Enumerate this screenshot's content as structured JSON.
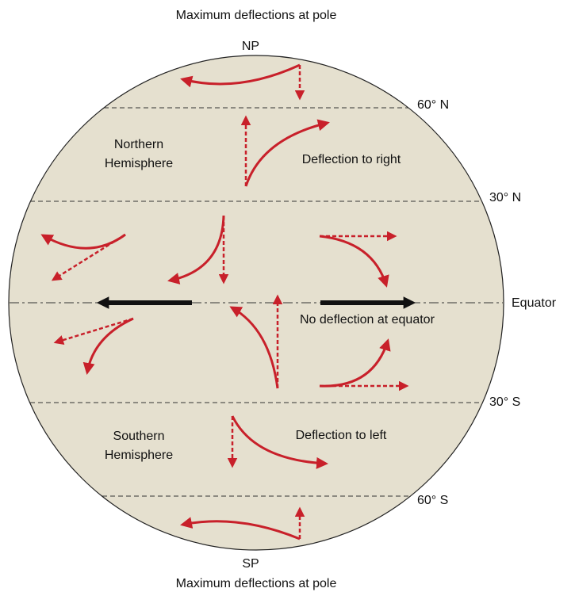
{
  "top_caption": "Maximum deflections at pole",
  "bottom_caption": "Maximum deflections at pole",
  "poles": {
    "north": "NP",
    "south": "SP"
  },
  "latitudes": {
    "n60": "60° N",
    "n30": "30° N",
    "equator": "Equator",
    "s30": "30° S",
    "s60": "60° S"
  },
  "regions": {
    "northern": {
      "line1": "Northern",
      "line2": "Hemisphere",
      "note": "Deflection to right"
    },
    "equator": {
      "note": "No deflection at equator"
    },
    "southern": {
      "line1": "Southern",
      "line2": "Hemisphere",
      "note": "Deflection to left"
    }
  }
}
